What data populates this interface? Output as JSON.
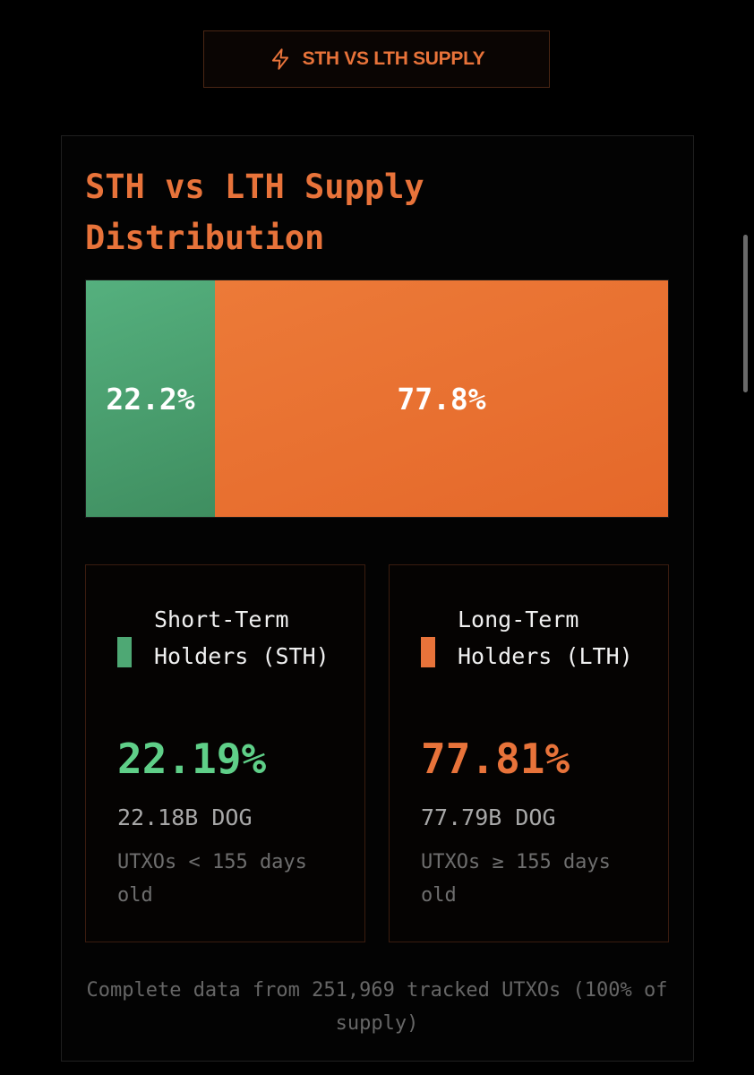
{
  "colors": {
    "accent": "#e8733a",
    "sth": "#4ea874",
    "sth_text": "#5fcf88",
    "lth": "#e8733a",
    "lth_text": "#e8733a"
  },
  "tag": {
    "icon": "lightning-bolt-icon",
    "label": "STH VS LTH SUPPLY"
  },
  "card": {
    "title": "STH vs LTH Supply Distribution"
  },
  "chart_data": {
    "type": "bar",
    "orientation": "horizontal-stacked",
    "title": "STH vs LTH Supply Distribution",
    "categories": [
      "Short-Term Holders (STH)",
      "Long-Term Holders (LTH)"
    ],
    "values": [
      22.2,
      77.8
    ],
    "value_labels": [
      "22.2%",
      "77.8%"
    ],
    "unit": "%",
    "ylim": [
      0,
      100
    ],
    "legend": "below",
    "grid": false
  },
  "holders": {
    "sth": {
      "name": "Short-Term Holders (STH)",
      "percentage": "22.19%",
      "amount": "22.18B DOG",
      "description": "UTXOs < 155 days old"
    },
    "lth": {
      "name": "Long-Term Holders (LTH)",
      "percentage": "77.81%",
      "amount": "77.79B DOG",
      "description": "UTXOs ≥ 155 days old"
    }
  },
  "footer": {
    "note": "Complete data from 251,969 tracked UTXOs (100% of supply)"
  }
}
